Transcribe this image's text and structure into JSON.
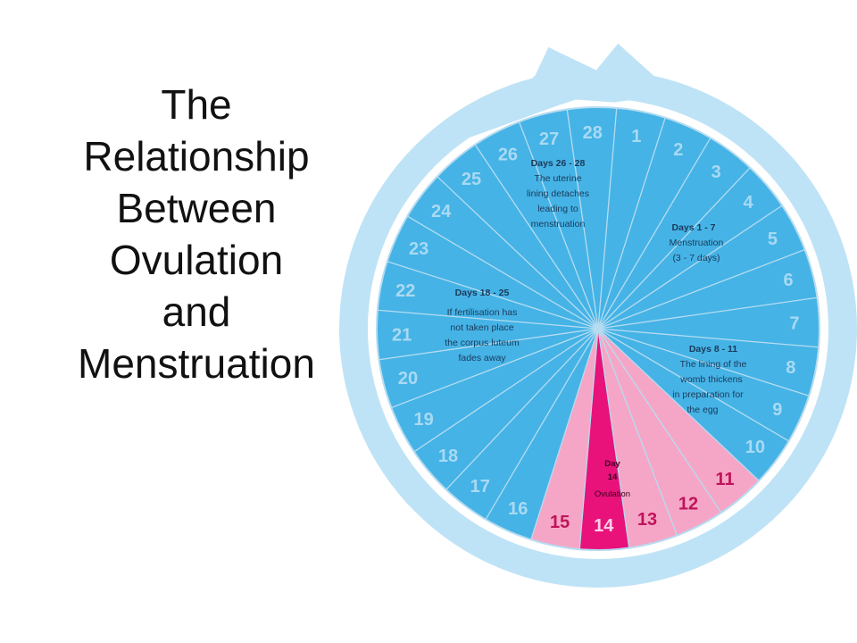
{
  "title_lines": [
    "The",
    "Relationship",
    "Between",
    "Ovulation",
    "and",
    "Menstruation"
  ],
  "cycle": {
    "days": [
      "1",
      "2",
      "3",
      "4",
      "5",
      "6",
      "7",
      "8",
      "9",
      "10",
      "11",
      "12",
      "13",
      "14",
      "15",
      "16",
      "17",
      "18",
      "19",
      "20",
      "21",
      "22",
      "23",
      "24",
      "25",
      "26",
      "27",
      "28"
    ],
    "highlight_days": [
      11,
      12,
      13,
      15
    ],
    "ovulation_day": 14,
    "phases": {
      "menstruation": {
        "heading": "Days 1 - 7",
        "lines": [
          "Menstruation",
          "(3 - 7 days)"
        ]
      },
      "thickening": {
        "heading": "Days 8 - 11",
        "lines": [
          "The lining of the",
          "womb thickens",
          "in preparation for",
          "the egg"
        ]
      },
      "ovulation": {
        "heading": "Day",
        "lines": [
          "14",
          "Ovulation"
        ]
      },
      "luteum": {
        "heading": "Days 18 - 25",
        "lines": [
          "If fertilisation has",
          "not taken place",
          "the corpus luteum",
          "fades away"
        ]
      },
      "detach": {
        "heading": "Days 26 - 28",
        "lines": [
          "The uterine",
          "lining detaches",
          "leading to",
          "menstruation"
        ]
      }
    }
  },
  "colors": {
    "blue": "#45b3e6",
    "ring": "#bfe3f6",
    "divider": "#b6dcf1",
    "number_blue": "#a9daf3",
    "pink": "#f5a6c6",
    "magenta": "#e8127a",
    "number_pink": "#c0135a"
  }
}
